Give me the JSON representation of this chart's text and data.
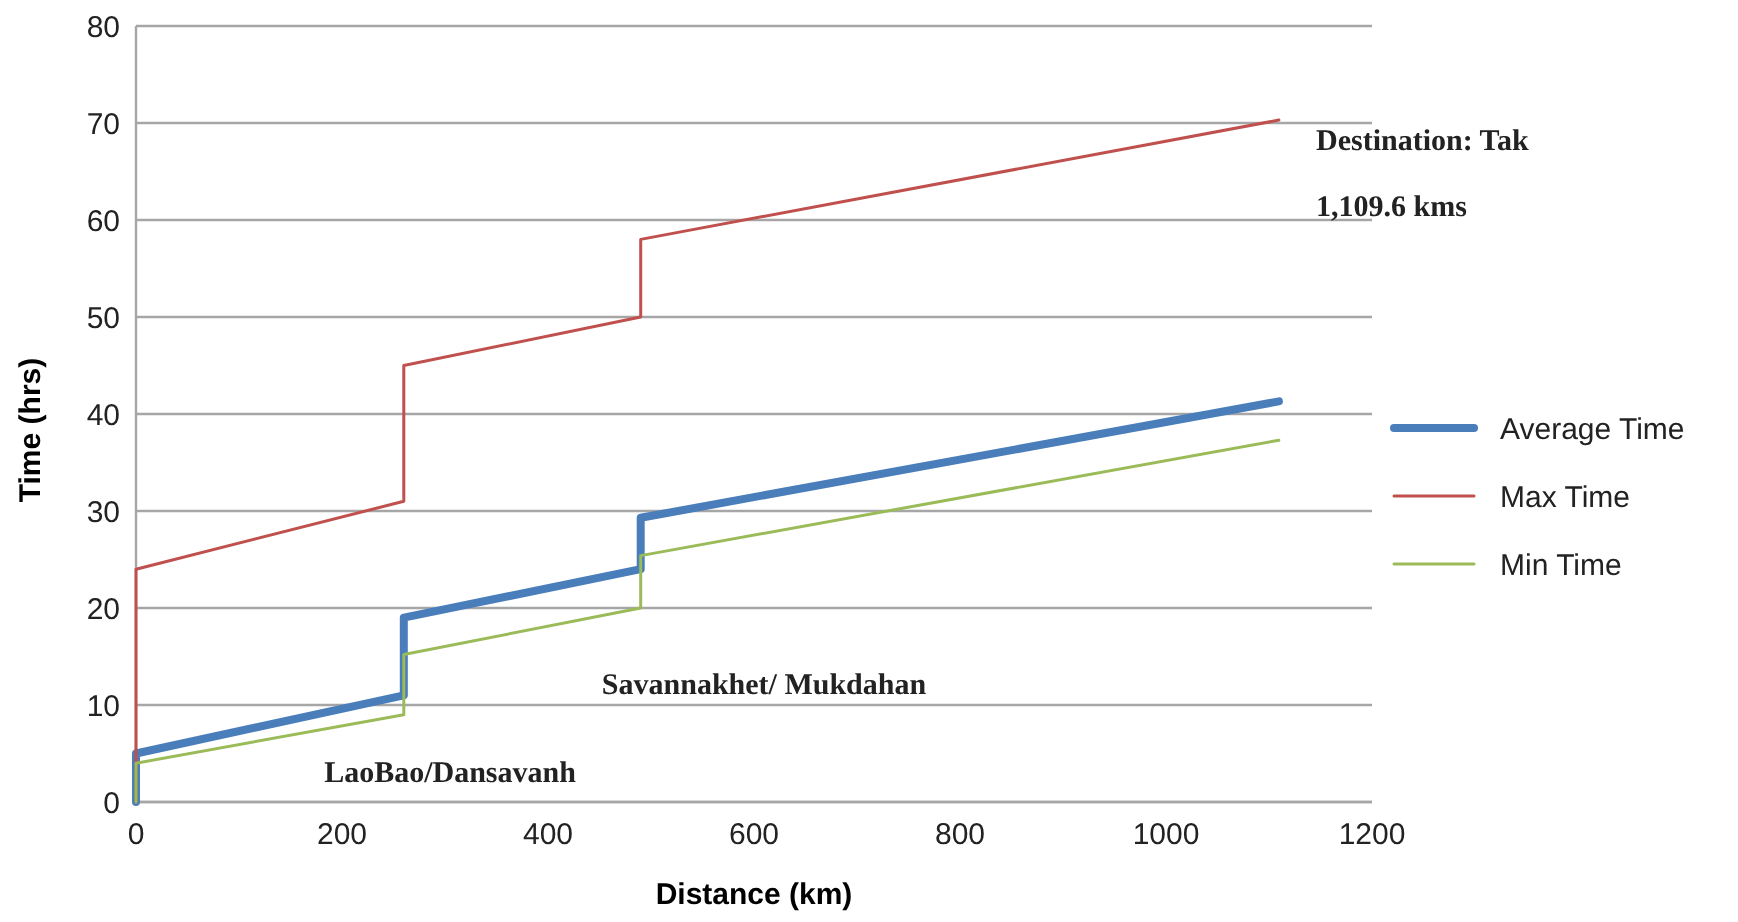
{
  "chart_data": {
    "type": "line",
    "xlabel": "Distance (km)",
    "ylabel": "Time (hrs)",
    "xlim": [
      0,
      1200
    ],
    "xticks": [
      0,
      200,
      400,
      600,
      800,
      1000,
      1200
    ],
    "ylim": [
      0,
      80
    ],
    "yticks": [
      0,
      10,
      20,
      30,
      40,
      50,
      60,
      70,
      80
    ],
    "grid": "y",
    "legend": "right",
    "line_style": "solid",
    "marker": "none",
    "series": [
      {
        "name": "Average Time",
        "color": "#4a7ebb",
        "x": [
          0,
          0,
          260,
          260,
          490,
          490,
          1109.6
        ],
        "values": [
          0,
          5,
          11,
          19,
          24,
          29.3,
          41.3
        ]
      },
      {
        "name": "Max Time",
        "color": "#c0504d",
        "x": [
          0,
          0,
          260,
          260,
          490,
          490,
          1109.6
        ],
        "values": [
          0,
          24,
          31,
          45,
          50,
          58,
          70.3
        ]
      },
      {
        "name": "Min Time",
        "color": "#9bbb59",
        "x": [
          0,
          0,
          260,
          260,
          490,
          490,
          1109.6
        ],
        "values": [
          0,
          4,
          9,
          15.2,
          20,
          25.4,
          37.3
        ]
      }
    ],
    "annotations": [
      "LaoBao/Dansavanh",
      "Savannakhet/ Mukdahan",
      "Destination: Tak",
      "1,109.6 kms"
    ]
  }
}
